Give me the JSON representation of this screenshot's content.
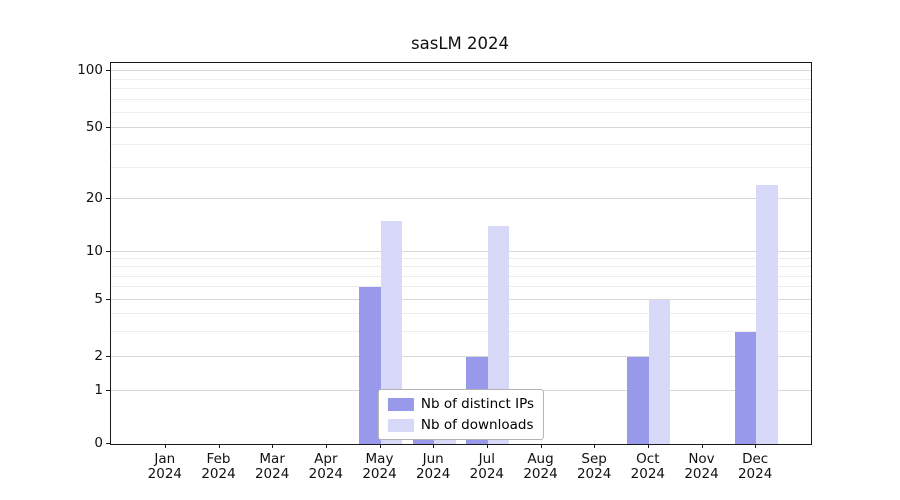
{
  "chart_data": {
    "type": "bar",
    "title": "sasLM 2024",
    "categories": [
      "Jan",
      "Feb",
      "Mar",
      "Apr",
      "May",
      "Jun",
      "Jul",
      "Aug",
      "Sep",
      "Oct",
      "Nov",
      "Dec"
    ],
    "year": "2024",
    "series": [
      {
        "name": "Nb of distinct IPs",
        "color": "#9999eb",
        "values": [
          0,
          0,
          0,
          0,
          6,
          1,
          2,
          0,
          0,
          2,
          0,
          3
        ]
      },
      {
        "name": "Nb of downloads",
        "color": "#d8d8f8",
        "values": [
          0,
          0,
          0,
          0,
          15,
          1,
          14,
          0,
          0,
          5,
          0,
          24
        ]
      }
    ],
    "yticks": [
      0,
      1,
      2,
      5,
      10,
      20,
      50,
      100
    ],
    "minor_yticks": [
      3,
      4,
      6,
      7,
      8,
      9,
      30,
      40,
      60,
      70,
      80,
      90
    ],
    "ylim": [
      0,
      100
    ],
    "scale": "symlog",
    "grid": true,
    "legend_position": "lower center",
    "colors": {
      "grid_major": "#d7d7d7",
      "grid_minor": "#ececec",
      "spine": "#1a1a1a",
      "legend_border": "#b3b3b3"
    }
  }
}
